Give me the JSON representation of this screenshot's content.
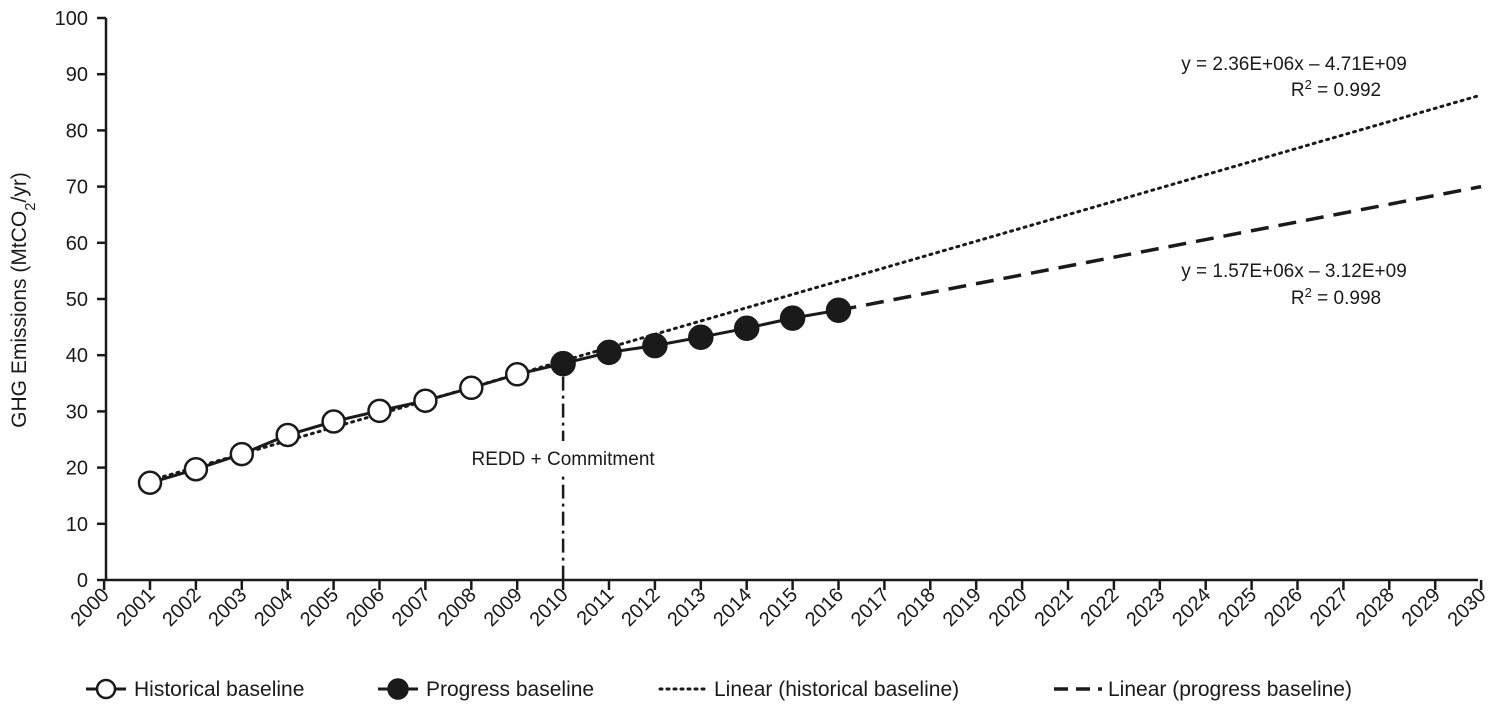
{
  "chart_data": {
    "type": "line",
    "ylabel": "GHG Emissions (MtCO",
    "ylabel_sub": "2",
    "ylabel_tail": "/yr)",
    "ylim": [
      0,
      100
    ],
    "y_ticks": [
      0,
      10,
      20,
      30,
      40,
      50,
      60,
      70,
      80,
      90,
      100
    ],
    "xlim": [
      2000,
      2030
    ],
    "x_ticks": [
      "2000",
      "2001",
      "2002",
      "2003",
      "2004",
      "2005",
      "2006",
      "2007",
      "2008",
      "2009",
      "2010",
      "2011",
      "2012",
      "2013",
      "2014",
      "2015",
      "2016",
      "2017",
      "2018",
      "2019",
      "2020",
      "2021",
      "2022",
      "2023",
      "2024",
      "2025",
      "2026",
      "2027",
      "2028",
      "2029",
      "2030"
    ],
    "series": [
      {
        "name": "Historical baseline",
        "style": "solid-open-markers",
        "x": [
          2001,
          2002,
          2003,
          2004,
          2005,
          2006,
          2007,
          2008,
          2009,
          2010
        ],
        "y": [
          17.3,
          19.7,
          22.4,
          25.8,
          28.2,
          30.1,
          31.9,
          34.2,
          36.6,
          38.5
        ]
      },
      {
        "name": "Progress baseline",
        "style": "solid-filled-markers",
        "x": [
          2010,
          2011,
          2012,
          2013,
          2014,
          2015,
          2016
        ],
        "y": [
          38.5,
          40.5,
          41.7,
          43.2,
          44.8,
          46.6,
          48.0
        ]
      },
      {
        "name": "Linear (historical baseline)",
        "style": "dotted",
        "x": [
          2001,
          2030
        ],
        "y": [
          17.7,
          86.3
        ]
      },
      {
        "name": "Linear (progress baseline)",
        "style": "dashed",
        "x": [
          2016,
          2030
        ],
        "y": [
          48.0,
          70.0
        ]
      }
    ],
    "annotations": {
      "historical_eq": "y = 2.36E+06x – 4.71E+09",
      "historical_r2_prefix": "R",
      "historical_r2_sup": "2",
      "historical_r2_tail": " = 0.992",
      "progress_eq": "y = 1.57E+06x – 3.12E+09",
      "progress_r2_prefix": "R",
      "progress_r2_sup": "2",
      "progress_r2_tail": " = 0.998",
      "commitment_label": "REDD + Commitment",
      "commitment_year": 2010
    },
    "grid": false,
    "legend_position": "bottom",
    "colors": {
      "ink": "#1a1a1a",
      "marker_open_fill": "#ffffff"
    }
  }
}
